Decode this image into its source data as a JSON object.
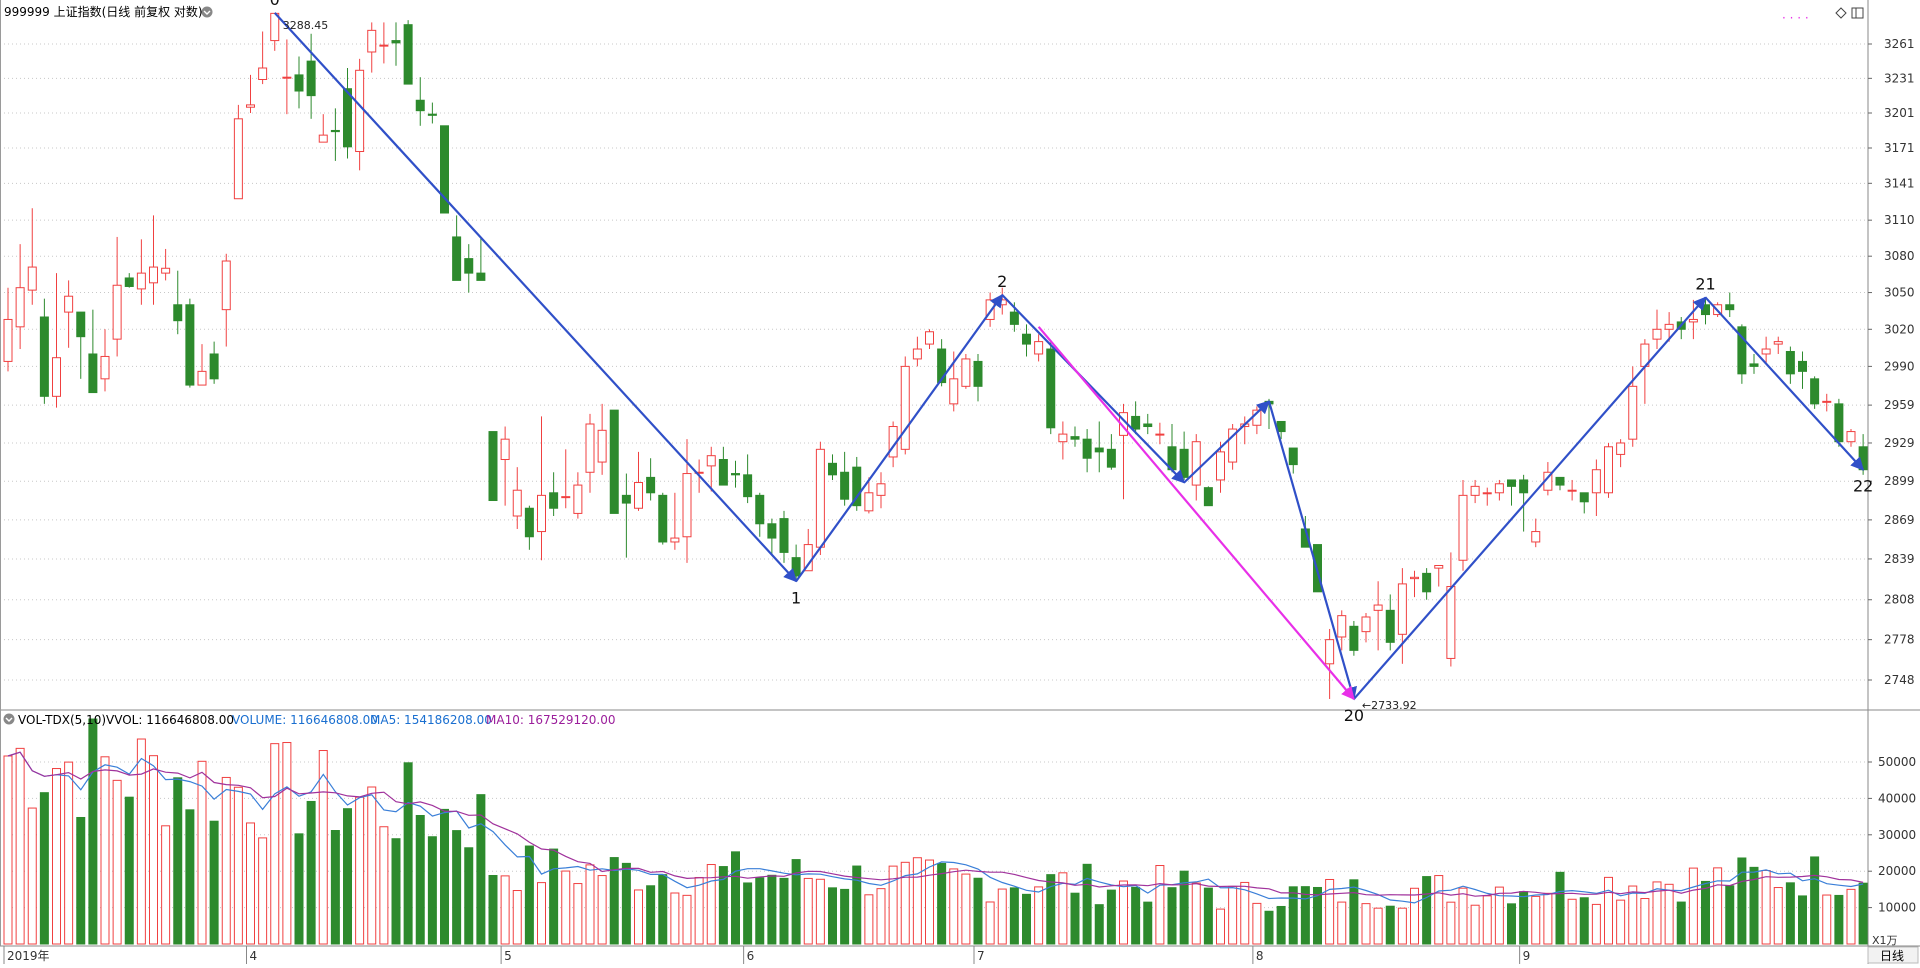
{
  "header": {
    "title": "999999 上证指数(日线 前复权 对数)",
    "menu_icon": "chevron-down-circle-icon",
    "diamond_icon": "diamond-icon",
    "panel_icon": "panel-toggle-icon",
    "dotted_marker": "· · · ·"
  },
  "volume_header": {
    "indicator": "VOL-TDX(5,10)",
    "vvol": "VVOL: 116646808.00",
    "volume": "VOLUME: 116646808.00",
    "ma5": "MA5: 154186208.00",
    "ma10": "MA10: 167529120.00"
  },
  "footer": {
    "x_unit": "X1万",
    "period_button": "日线"
  },
  "colors": {
    "up": "#f04040",
    "down": "#2d8a2d",
    "wave": "#3050c8",
    "wave_magenta": "#e830e8",
    "ma5": "#3a7fd8",
    "ma10": "#a0329c",
    "volume_label": "#1a6fd0",
    "ma10_label": "#9b1e9b"
  },
  "chart_data": [
    {
      "type": "candlestick",
      "title": "999999 上证指数(日线 前复权 对数)",
      "scale": "log",
      "y_ticks": [
        2748,
        2778,
        2808,
        2839,
        2869,
        2899,
        2929,
        2959,
        2990,
        3020,
        3050,
        3080,
        3110,
        3141,
        3171,
        3201,
        3231,
        3261
      ],
      "x_labels": [
        {
          "label": "2019年",
          "index": 0
        },
        {
          "label": "4",
          "index": 20
        },
        {
          "label": "5",
          "index": 41
        },
        {
          "label": "6",
          "index": 61
        },
        {
          "label": "7",
          "index": 80
        },
        {
          "label": "8",
          "index": 103
        },
        {
          "label": "9",
          "index": 125
        }
      ],
      "candles": [
        [
          2994,
          3028,
          3054,
          2986
        ],
        [
          3022,
          3054,
          3090,
          3004
        ],
        [
          3052,
          3071,
          3120,
          3040
        ],
        [
          3030,
          2966,
          3045,
          2960
        ],
        [
          2966,
          2997,
          3066,
          2957
        ],
        [
          3034,
          3047,
          3060,
          3005
        ],
        [
          3034,
          3014,
          3034,
          2980
        ],
        [
          3000,
          2969,
          3036,
          2969
        ],
        [
          2980,
          2998,
          3020,
          2970
        ],
        [
          3012,
          3056,
          3096,
          2998
        ],
        [
          3062,
          3055,
          3066,
          3054
        ],
        [
          3053,
          3066,
          3094,
          3040
        ],
        [
          3058,
          3071,
          3114,
          3040
        ],
        [
          3066,
          3070,
          3086,
          3060
        ],
        [
          3040,
          3027,
          3068,
          3016
        ],
        [
          3040,
          2975,
          3045,
          2973
        ],
        [
          2975,
          2986,
          3008,
          2975
        ],
        [
          3000,
          2980,
          3010,
          2976
        ],
        [
          3036,
          3076,
          3082,
          3006
        ],
        [
          3128,
          3196,
          3208,
          3128
        ],
        [
          3206,
          3208,
          3234,
          3201
        ],
        [
          3230,
          3240,
          3272,
          3226
        ],
        [
          3264,
          3288,
          3288,
          3255
        ],
        [
          3232,
          3232,
          3265,
          3200
        ],
        [
          3234,
          3220,
          3250,
          3205
        ],
        [
          3246,
          3216,
          3270,
          3196
        ],
        [
          3176,
          3182,
          3200,
          3176
        ],
        [
          3186,
          3185,
          3205,
          3160
        ],
        [
          3222,
          3172,
          3240,
          3162
        ],
        [
          3168,
          3238,
          3248,
          3152
        ],
        [
          3254,
          3273,
          3280,
          3236
        ],
        [
          3260,
          3260,
          3280,
          3244
        ],
        [
          3264,
          3262,
          3280,
          3242
        ],
        [
          3278,
          3226,
          3282,
          3226
        ],
        [
          3212,
          3203,
          3232,
          3190
        ],
        [
          3200,
          3199,
          3210,
          3192
        ],
        [
          3190,
          3116,
          3190,
          3116
        ],
        [
          3096,
          3060,
          3114,
          3060
        ],
        [
          3078,
          3066,
          3090,
          3050
        ],
        [
          3066,
          3060,
          3096,
          3060
        ],
        [
          2938,
          2884,
          2938,
          2884
        ],
        [
          2916,
          2932,
          2942,
          2880
        ],
        [
          2872,
          2892,
          2910,
          2862
        ],
        [
          2878,
          2856,
          2880,
          2846
        ],
        [
          2860,
          2888,
          2950,
          2838
        ],
        [
          2890,
          2878,
          2906,
          2872
        ],
        [
          2887,
          2887,
          2924,
          2878
        ],
        [
          2874,
          2896,
          2906,
          2870
        ],
        [
          2906,
          2944,
          2952,
          2890
        ],
        [
          2914,
          2939,
          2960,
          2904
        ],
        [
          2955,
          2874,
          2955,
          2874
        ],
        [
          2888,
          2882,
          2905,
          2840
        ],
        [
          2878,
          2898,
          2922,
          2876
        ],
        [
          2902,
          2890,
          2917,
          2884
        ],
        [
          2888,
          2852,
          2890,
          2850
        ],
        [
          2852,
          2855,
          2890,
          2846
        ],
        [
          2856,
          2905,
          2932,
          2836
        ],
        [
          2906,
          2906,
          2916,
          2890
        ],
        [
          2911,
          2919,
          2926,
          2891
        ],
        [
          2916,
          2896,
          2926,
          2896
        ],
        [
          2905,
          2904,
          2915,
          2894
        ],
        [
          2904,
          2887,
          2920,
          2882
        ],
        [
          2888,
          2866,
          2890,
          2856
        ],
        [
          2866,
          2855,
          2870,
          2842
        ],
        [
          2870,
          2844,
          2876,
          2836
        ],
        [
          2840,
          2826,
          2850,
          2822
        ],
        [
          2830,
          2850,
          2862,
          2838
        ],
        [
          2848,
          2924,
          2930,
          2842
        ],
        [
          2913,
          2904,
          2920,
          2900
        ],
        [
          2906,
          2885,
          2922,
          2880
        ],
        [
          2910,
          2880,
          2918,
          2876
        ],
        [
          2876,
          2890,
          2902,
          2874
        ],
        [
          2888,
          2897,
          2906,
          2878
        ],
        [
          2918,
          2942,
          2946,
          2910
        ],
        [
          2924,
          2990,
          2998,
          2920
        ],
        [
          2996,
          3004,
          3014,
          2990
        ],
        [
          3008,
          3018,
          3020,
          3004
        ],
        [
          3004,
          2977,
          3012,
          2974
        ],
        [
          2960,
          2980,
          3002,
          2954
        ],
        [
          2974,
          2996,
          3000,
          2972
        ],
        [
          2994,
          2974,
          3000,
          2962
        ],
        [
          3028,
          3044,
          3050,
          3022
        ],
        [
          3040,
          3044,
          3054,
          3032
        ],
        [
          3034,
          3024,
          3042,
          3018
        ],
        [
          3016,
          3008,
          3024,
          2998
        ],
        [
          3000,
          3010,
          3016,
          2994
        ],
        [
          3004,
          2941,
          3010,
          2936
        ],
        [
          2930,
          2936,
          2946,
          2916
        ],
        [
          2934,
          2932,
          2942,
          2926
        ],
        [
          2932,
          2917,
          2940,
          2906
        ],
        [
          2925,
          2922,
          2946,
          2906
        ],
        [
          2924,
          2910,
          2936,
          2908
        ],
        [
          2935,
          2953,
          2960,
          2885
        ],
        [
          2950,
          2940,
          2962,
          2936
        ],
        [
          2944,
          2942,
          2952,
          2936
        ],
        [
          2936,
          2936,
          2945,
          2928
        ],
        [
          2926,
          2908,
          2944,
          2906
        ],
        [
          2924,
          2902,
          2938,
          2900
        ],
        [
          2896,
          2930,
          2936,
          2884
        ],
        [
          2894,
          2880,
          2895,
          2880
        ],
        [
          2900,
          2922,
          2930,
          2890
        ],
        [
          2914,
          2940,
          2944,
          2908
        ],
        [
          2942,
          2944,
          2950,
          2928
        ],
        [
          2943,
          2955,
          2958,
          2936
        ],
        [
          2962,
          2960,
          2964,
          2940
        ],
        [
          2946,
          2938,
          2946,
          2932
        ],
        [
          2925,
          2912,
          2925,
          2905
        ],
        [
          2862,
          2848,
          2872,
          2848
        ],
        [
          2850,
          2814,
          2850,
          2814
        ],
        [
          2760,
          2778,
          2786,
          2734
        ],
        [
          2780,
          2796,
          2800,
          2770
        ],
        [
          2788,
          2770,
          2792,
          2766
        ],
        [
          2784,
          2795,
          2798,
          2776
        ],
        [
          2800,
          2804,
          2822,
          2770
        ],
        [
          2800,
          2776,
          2812,
          2770
        ],
        [
          2782,
          2820,
          2832,
          2760
        ],
        [
          2824,
          2825,
          2830,
          2810
        ],
        [
          2828,
          2814,
          2832,
          2808
        ],
        [
          2832,
          2834,
          2834,
          2818
        ],
        [
          2764,
          2818,
          2844,
          2758
        ],
        [
          2838,
          2888,
          2900,
          2830
        ],
        [
          2888,
          2895,
          2900,
          2882
        ],
        [
          2890,
          2890,
          2894,
          2880
        ],
        [
          2890,
          2897,
          2900,
          2884
        ],
        [
          2900,
          2895,
          2900,
          2880
        ],
        [
          2900,
          2890,
          2904,
          2860
        ],
        [
          2852,
          2860,
          2870,
          2848
        ],
        [
          2892,
          2906,
          2914,
          2888
        ],
        [
          2902,
          2896,
          2902,
          2892
        ],
        [
          2892,
          2892,
          2900,
          2884
        ],
        [
          2890,
          2883,
          2890,
          2874
        ],
        [
          2890,
          2908,
          2916,
          2872
        ],
        [
          2890,
          2926,
          2929,
          2886
        ],
        [
          2920,
          2929,
          2932,
          2910
        ],
        [
          2932,
          2974,
          2990,
          2926
        ],
        [
          2990,
          3008,
          3012,
          2960
        ],
        [
          3012,
          3020,
          3036,
          3004
        ],
        [
          3020,
          3024,
          3034,
          3010
        ],
        [
          3026,
          3020,
          3030,
          3012
        ],
        [
          3026,
          3028,
          3044,
          3012
        ],
        [
          3040,
          3032,
          3046,
          3024
        ],
        [
          3032,
          3040,
          3042,
          3030
        ],
        [
          3040,
          3036,
          3050,
          3030
        ],
        [
          3022,
          2984,
          3024,
          2976
        ],
        [
          2992,
          2990,
          3000,
          2984
        ],
        [
          3000,
          3004,
          3014,
          2992
        ],
        [
          3008,
          3010,
          3014,
          3000
        ],
        [
          3002,
          2984,
          3006,
          2976
        ],
        [
          2994,
          2986,
          3002,
          2972
        ],
        [
          2980,
          2960,
          2982,
          2956
        ],
        [
          2962,
          2962,
          2968,
          2954
        ],
        [
          2960,
          2930,
          2964,
          2926
        ],
        [
          2930,
          2938,
          2940,
          2926
        ],
        [
          2926,
          2908,
          2936,
          2904
        ]
      ],
      "wave_points": [
        {
          "label": "0",
          "index": 22,
          "price": 3288.45
        },
        {
          "label": "1",
          "index": 65,
          "price": 2822
        },
        {
          "label": "2",
          "index": 82,
          "price": 3048
        },
        {
          "label": "",
          "index": 97,
          "price": 2898
        },
        {
          "label": "",
          "index": 104,
          "price": 2962
        },
        {
          "label": "20",
          "index": 111,
          "price": 2733.92
        },
        {
          "label": "21",
          "index": 140,
          "price": 3046
        },
        {
          "label": "22",
          "index": 153,
          "price": 2908
        }
      ],
      "price_annotations": [
        {
          "text": "3288.45",
          "index": 22,
          "price": 3288.45,
          "anchor": "top"
        },
        {
          "text": "←2733.92",
          "index": 111,
          "price": 2733.92,
          "anchor": "bottom"
        }
      ],
      "magenta_line": {
        "from_index": 85,
        "from_price": 3022,
        "to_index": 111,
        "to_price": 2734
      }
    },
    {
      "type": "bar",
      "title": "VOL-TDX(5,10)",
      "y_ticks": [
        10000,
        20000,
        30000,
        40000,
        50000
      ],
      "y_unit": "X1万",
      "series": [
        {
          "name": "VOLUME"
        },
        {
          "name": "MA5"
        },
        {
          "name": "MA10"
        }
      ]
    }
  ]
}
